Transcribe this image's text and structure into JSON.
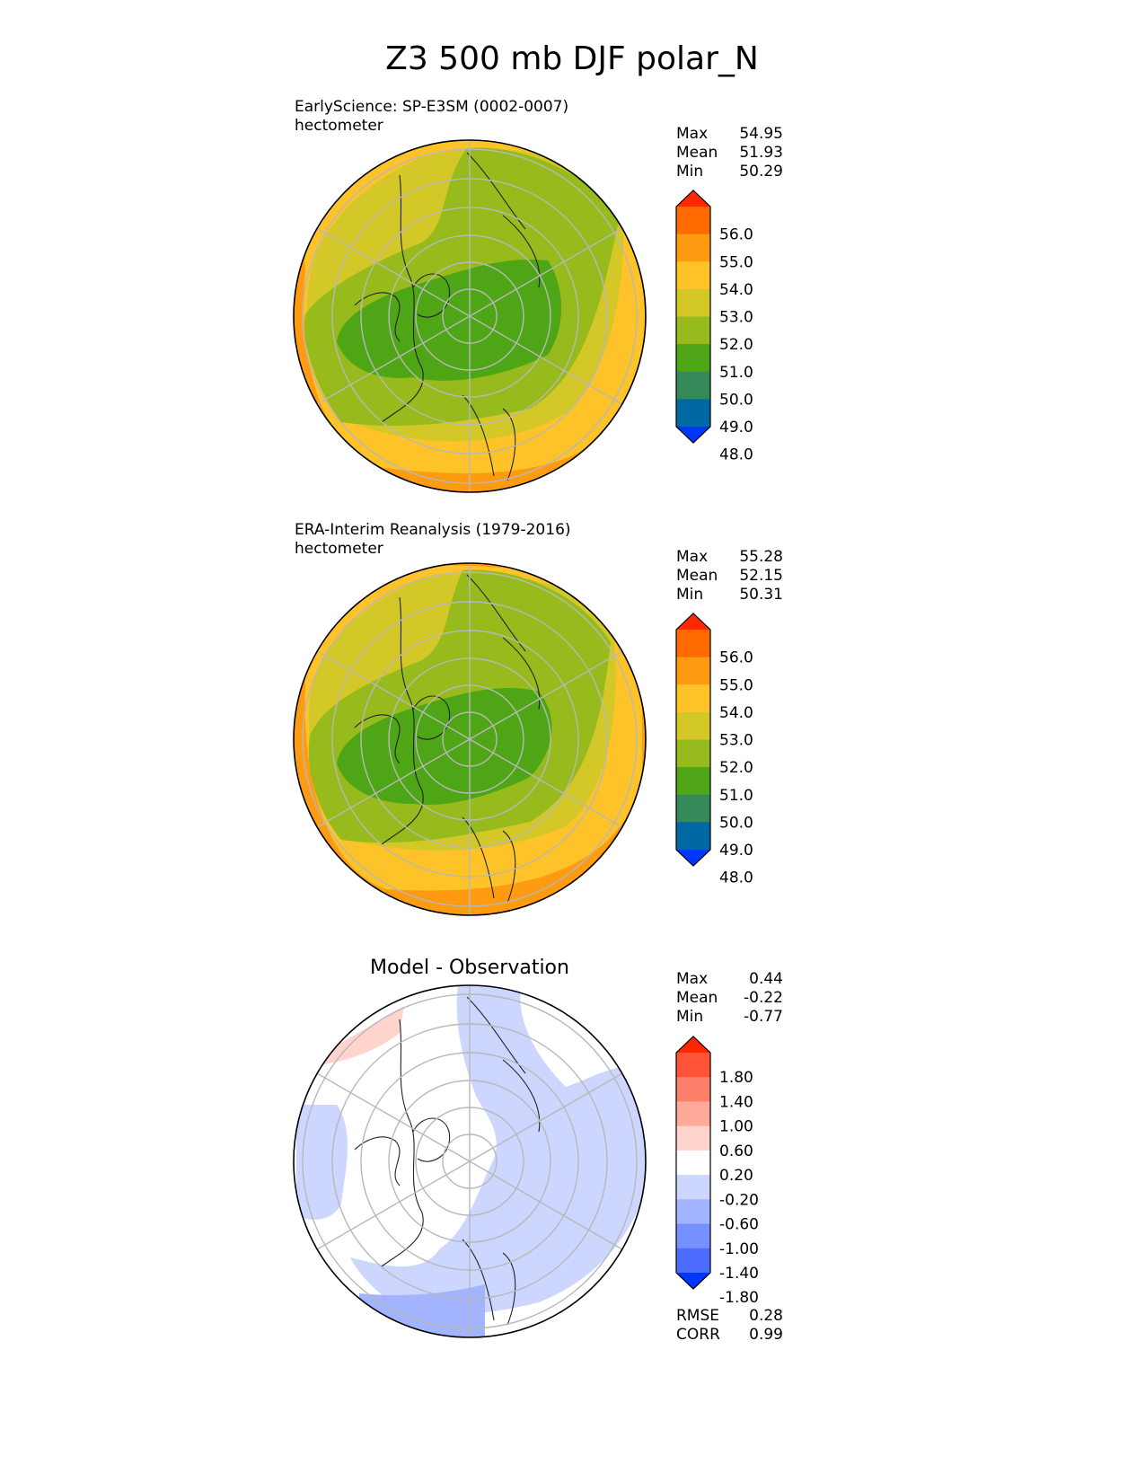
{
  "figure": {
    "title": "Z3 500 mb DJF polar_N"
  },
  "chart_data": [
    {
      "type": "heatmap",
      "projection": "north-polar-stereographic",
      "title_line1": "EarlyScience: SP-E3SM (0002-0007)",
      "title_line2": "hectometer",
      "stats": [
        {
          "label": "Max",
          "value": "54.95"
        },
        {
          "label": "Mean",
          "value": "51.93"
        },
        {
          "label": "Min",
          "value": "50.29"
        }
      ],
      "colorbar": {
        "ticks": [
          "56.0",
          "55.0",
          "54.0",
          "53.0",
          "52.0",
          "51.0",
          "50.0",
          "49.0",
          "48.0"
        ],
        "colors": [
          "#ff2800",
          "#ff6a00",
          "#ff9b10",
          "#fdc328",
          "#d4c828",
          "#97bb1c",
          "#4ea515",
          "#368a5a",
          "#0068a2",
          "#0036ff"
        ],
        "extend": "both"
      },
      "field_levels": [
        "54.0",
        "53.0",
        "52.0",
        "51.0"
      ],
      "grid": true
    },
    {
      "type": "heatmap",
      "projection": "north-polar-stereographic",
      "title_line1": "ERA-Interim Reanalysis (1979-2016)",
      "title_line2": "hectometer",
      "stats": [
        {
          "label": "Max",
          "value": "55.28"
        },
        {
          "label": "Mean",
          "value": "52.15"
        },
        {
          "label": "Min",
          "value": "50.31"
        }
      ],
      "colorbar": {
        "ticks": [
          "56.0",
          "55.0",
          "54.0",
          "53.0",
          "52.0",
          "51.0",
          "50.0",
          "49.0",
          "48.0"
        ],
        "colors": [
          "#ff2800",
          "#ff6a00",
          "#ff9b10",
          "#fdc328",
          "#d4c828",
          "#97bb1c",
          "#4ea515",
          "#368a5a",
          "#0068a2",
          "#0036ff"
        ],
        "extend": "both"
      },
      "field_levels": [
        "54.0",
        "53.0",
        "52.0",
        "51.0"
      ],
      "grid": true
    },
    {
      "type": "heatmap",
      "projection": "north-polar-stereographic",
      "title": "Model - Observation",
      "stats": [
        {
          "label": "Max",
          "value": "0.44"
        },
        {
          "label": "Mean",
          "value": "-0.22"
        },
        {
          "label": "Min",
          "value": "-0.77"
        }
      ],
      "colorbar": {
        "ticks": [
          "1.80",
          "1.40",
          "1.00",
          "0.60",
          "0.20",
          "-0.20",
          "-0.60",
          "-1.00",
          "-1.40",
          "-1.80"
        ],
        "colors": [
          "#ff2800",
          "#ff5438",
          "#ff806a",
          "#ffaa98",
          "#ffd4cc",
          "#ffffff",
          "#ccd6ff",
          "#a2b3ff",
          "#7790ff",
          "#4c6cff",
          "#0036ff"
        ],
        "extend": "both"
      },
      "metrics": [
        {
          "label": "RMSE",
          "value": "0.28"
        },
        {
          "label": "CORR",
          "value": "0.99"
        }
      ],
      "grid": true
    }
  ]
}
